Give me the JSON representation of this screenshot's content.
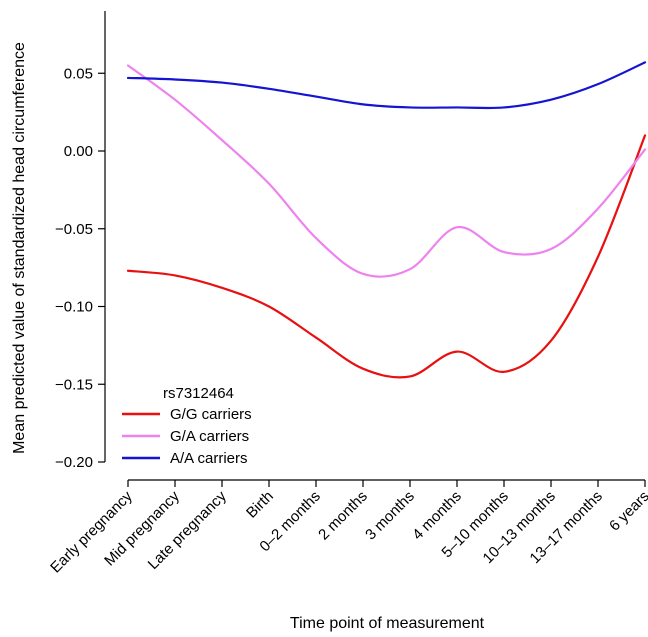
{
  "chart_data": {
    "type": "line",
    "title": "",
    "xlabel": "Time point of measurement",
    "ylabel": "Mean predicted value of standardized head circumference",
    "categories": [
      "Early pregnancy",
      "Mid pregnancy",
      "Late pregnancy",
      "Birth",
      "0–2 months",
      "2 months",
      "3 months",
      "4 months",
      "5–10 months",
      "10–13 months",
      "13–17 months",
      "6 years"
    ],
    "ylim": [
      -0.2,
      0.09
    ],
    "yticks": [
      -0.2,
      -0.15,
      -0.1,
      -0.05,
      0.0,
      0.05
    ],
    "ytick_labels": [
      "−0.20",
      "−0.15",
      "−0.10",
      "−0.05",
      "0.00",
      "0.05"
    ],
    "grid": false,
    "legend": {
      "title": "rs7312464",
      "position": "bottom-left"
    },
    "series": [
      {
        "name": "G/G carriers",
        "color": "#e81010",
        "values": [
          -0.077,
          -0.08,
          -0.088,
          -0.1,
          -0.12,
          -0.14,
          -0.145,
          -0.129,
          -0.142,
          -0.122,
          -0.068,
          0.01
        ]
      },
      {
        "name": "G/A carriers",
        "color": "#ee82ee",
        "values": [
          0.055,
          0.033,
          0.007,
          -0.021,
          -0.056,
          -0.079,
          -0.076,
          -0.049,
          -0.065,
          -0.063,
          -0.037,
          0.001
        ]
      },
      {
        "name": "A/A carriers",
        "color": "#1414d2",
        "values": [
          0.047,
          0.046,
          0.044,
          0.04,
          0.035,
          0.03,
          0.028,
          0.028,
          0.028,
          0.033,
          0.043,
          0.057
        ]
      }
    ]
  }
}
